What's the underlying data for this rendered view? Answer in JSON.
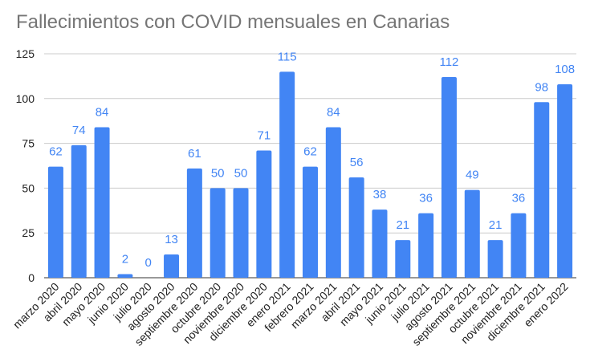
{
  "chart_data": {
    "type": "bar",
    "title": "Fallecimientos con COVID mensuales en Canarias",
    "xlabel": "",
    "ylabel": "",
    "ylim": [
      0,
      125
    ],
    "yticks": [
      0,
      25,
      50,
      75,
      100,
      125
    ],
    "grid": true,
    "legend": "none",
    "bar_color": "#4285f4",
    "label_color": "#4285f4",
    "categories": [
      "marzo 2020",
      "abril 2020",
      "mayo 2020",
      "junio 2020",
      "julio 2020",
      "agosto 2020",
      "septiembre 2020",
      "octubre 2020",
      "noviembre 2020",
      "diciembre 2020",
      "enero 2021",
      "febrero 2021",
      "marzo 2021",
      "abril 2021",
      "mayo 2021",
      "junio 2021",
      "julio 2021",
      "agosto 2021",
      "septiembre 2021",
      "octubre 2021",
      "noviembre 2021",
      "diciembre 2021",
      "enero 2022"
    ],
    "values": [
      62,
      74,
      84,
      2,
      0,
      13,
      61,
      50,
      50,
      71,
      115,
      62,
      84,
      56,
      38,
      21,
      36,
      112,
      49,
      21,
      36,
      98,
      108
    ]
  }
}
